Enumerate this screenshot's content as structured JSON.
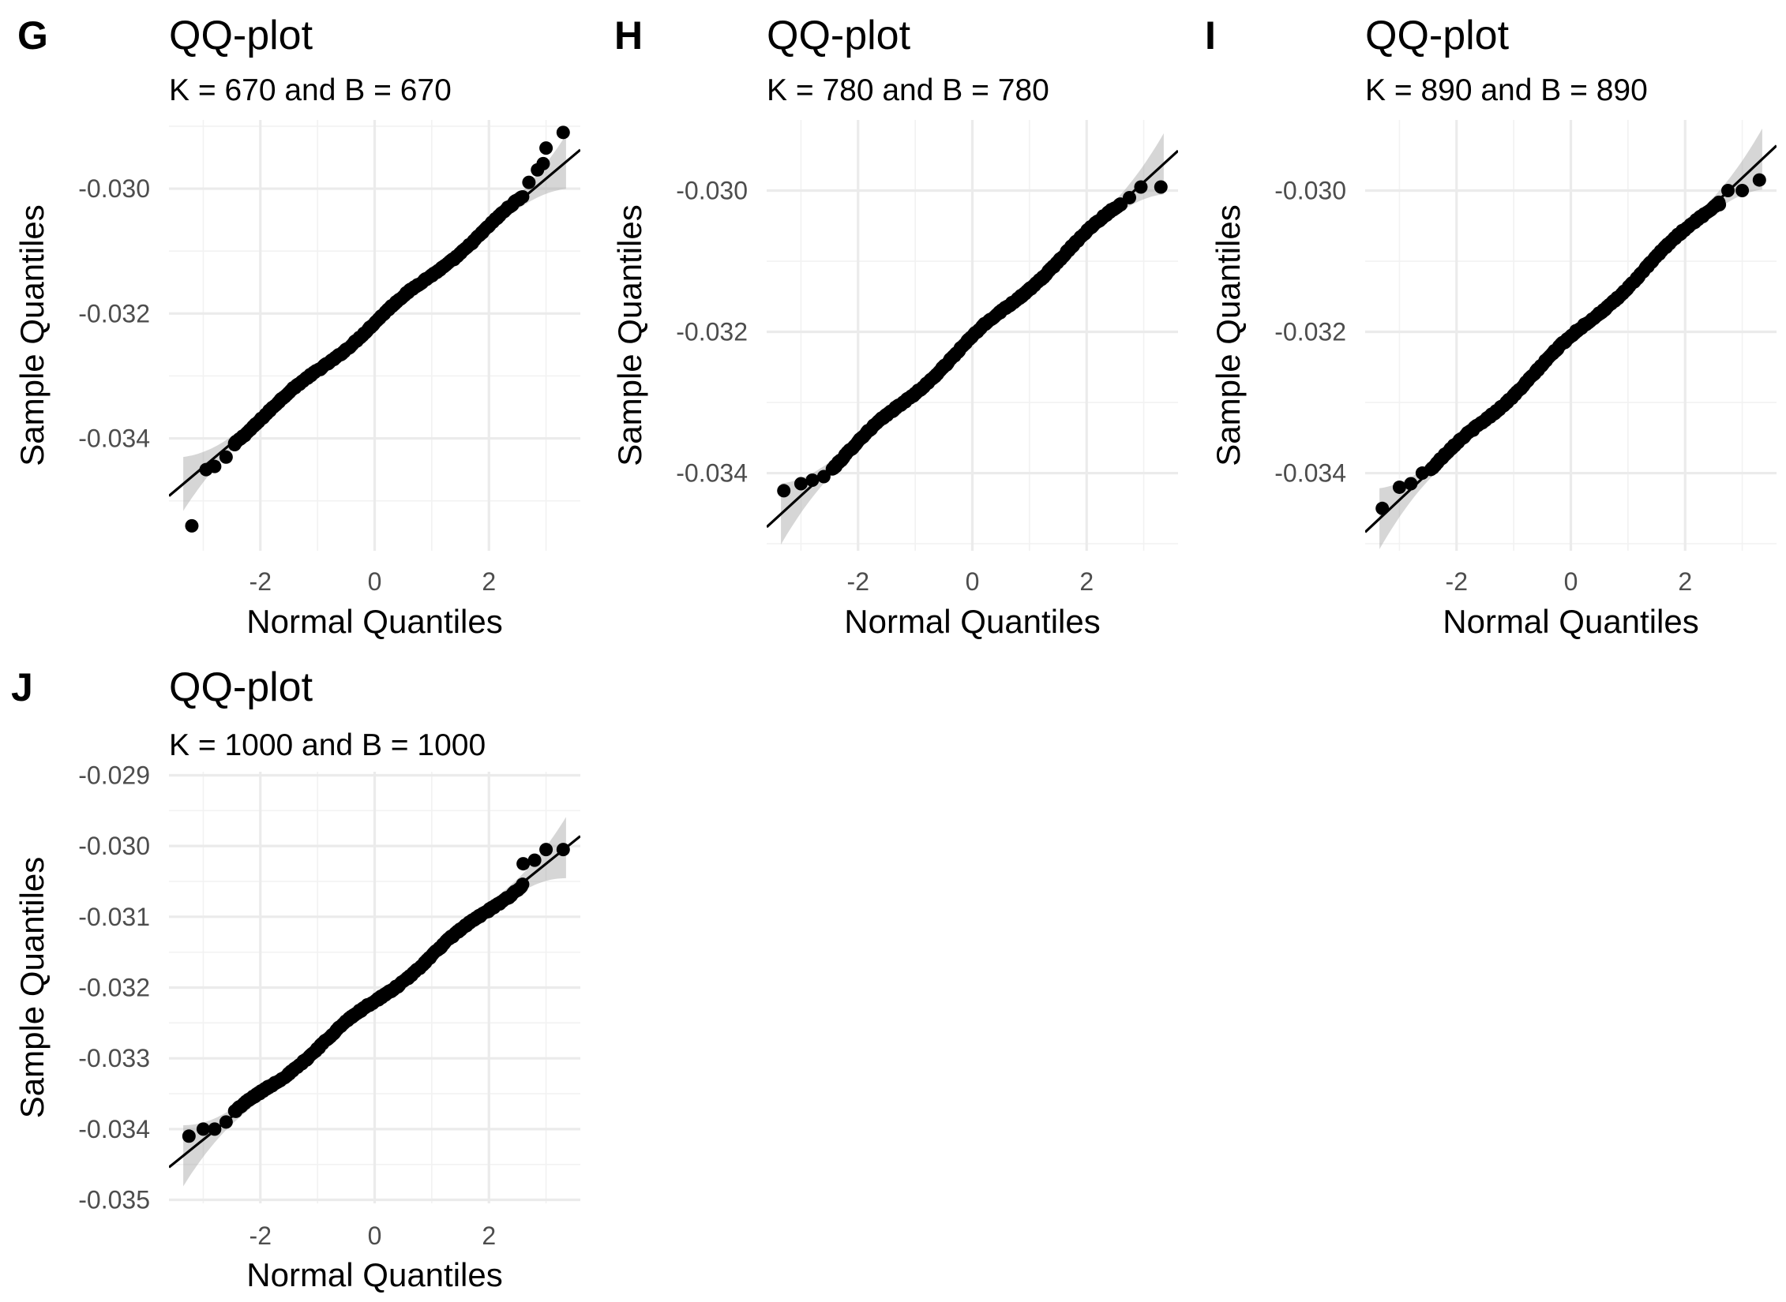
{
  "chart_data": [
    {
      "type": "scatter",
      "panel_label": "G",
      "title": "QQ-plot",
      "subtitle": "K = 670 and B = 670",
      "xlabel": "Normal Quantiles",
      "ylabel": "Sample Quantiles",
      "xlim": [
        -3.6,
        3.6
      ],
      "ylim": [
        -0.0358,
        -0.0289
      ],
      "x_ticks": [
        -2,
        0,
        2
      ],
      "x_tick_labels": [
        "-2",
        "0",
        "2"
      ],
      "y_ticks": [
        -0.034,
        -0.032,
        -0.03
      ],
      "y_tick_labels": [
        "-0.034",
        "-0.032",
        "-0.030"
      ],
      "grid": true,
      "reference_line": {
        "intercept": -0.03215,
        "slope": 0.00077
      },
      "confidence_band": true,
      "outlier_points": [
        {
          "x": -3.2,
          "y": -0.0354
        },
        {
          "x": -2.95,
          "y": -0.0345
        },
        {
          "x": -2.8,
          "y": -0.03445
        },
        {
          "x": -2.6,
          "y": -0.0343
        },
        {
          "x": -2.45,
          "y": -0.0341
        },
        {
          "x": 2.7,
          "y": -0.0299
        },
        {
          "x": 2.85,
          "y": -0.0297
        },
        {
          "x": 2.95,
          "y": -0.0296
        },
        {
          "x": 3.0,
          "y": -0.02935
        },
        {
          "x": 3.3,
          "y": -0.0291
        }
      ]
    },
    {
      "type": "scatter",
      "panel_label": "H",
      "title": "QQ-plot",
      "subtitle": "K = 780 and B = 780",
      "xlabel": "Normal Quantiles",
      "ylabel": "Sample Quantiles",
      "xlim": [
        -3.6,
        3.6
      ],
      "ylim": [
        -0.0351,
        -0.029
      ],
      "x_ticks": [
        -2,
        0,
        2
      ],
      "x_tick_labels": [
        "-2",
        "0",
        "2"
      ],
      "y_ticks": [
        -0.034,
        -0.032,
        -0.03
      ],
      "y_tick_labels": [
        "-0.034",
        "-0.032",
        "-0.030"
      ],
      "grid": true,
      "reference_line": {
        "intercept": -0.0321,
        "slope": 0.00074
      },
      "confidence_band": true,
      "outlier_points": [
        {
          "x": -3.3,
          "y": -0.03425
        },
        {
          "x": -3.0,
          "y": -0.03415
        },
        {
          "x": -2.8,
          "y": -0.0341
        },
        {
          "x": -2.6,
          "y": -0.03405
        },
        {
          "x": 2.6,
          "y": -0.0302
        },
        {
          "x": 2.75,
          "y": -0.0301
        },
        {
          "x": 2.95,
          "y": -0.02995
        },
        {
          "x": 3.3,
          "y": -0.02995
        }
      ]
    },
    {
      "type": "scatter",
      "panel_label": "I",
      "title": "QQ-plot",
      "subtitle": "K = 890 and B = 890",
      "xlabel": "Normal Quantiles",
      "ylabel": "Sample Quantiles",
      "xlim": [
        -3.6,
        3.6
      ],
      "ylim": [
        -0.0351,
        -0.029
      ],
      "x_ticks": [
        -2,
        0,
        2
      ],
      "x_tick_labels": [
        "-2",
        "0",
        "2"
      ],
      "y_ticks": [
        -0.034,
        -0.032,
        -0.03
      ],
      "y_tick_labels": [
        "-0.034",
        "-0.032",
        "-0.030"
      ],
      "grid": true,
      "reference_line": {
        "intercept": -0.0321,
        "slope": 0.00076
      },
      "confidence_band": true,
      "outlier_points": [
        {
          "x": -3.3,
          "y": -0.0345
        },
        {
          "x": -3.0,
          "y": -0.0342
        },
        {
          "x": -2.8,
          "y": -0.03415
        },
        {
          "x": -2.6,
          "y": -0.034
        },
        {
          "x": 2.6,
          "y": -0.0302
        },
        {
          "x": 2.75,
          "y": -0.03
        },
        {
          "x": 3.0,
          "y": -0.03
        },
        {
          "x": 3.3,
          "y": -0.02985
        }
      ]
    },
    {
      "type": "scatter",
      "panel_label": "J",
      "title": "QQ-plot",
      "subtitle": "K = 1000 and B = 1000",
      "xlabel": "Normal Quantiles",
      "ylabel": "Sample Quantiles",
      "xlim": [
        -3.6,
        3.6
      ],
      "ylim": [
        -0.03505,
        -0.02895
      ],
      "x_ticks": [
        -2,
        0,
        2
      ],
      "x_tick_labels": [
        "-2",
        "0",
        "2"
      ],
      "y_ticks": [
        -0.035,
        -0.034,
        -0.033,
        -0.032,
        -0.031,
        -0.03,
        -0.029
      ],
      "y_tick_labels": [
        "-0.035",
        "-0.034",
        "-0.033",
        "-0.032",
        "-0.031",
        "-0.030",
        "-0.029"
      ],
      "grid": true,
      "reference_line": {
        "intercept": -0.0322,
        "slope": 0.00065
      },
      "confidence_band": true,
      "outlier_points": [
        {
          "x": -3.25,
          "y": -0.0341
        },
        {
          "x": -3.0,
          "y": -0.034
        },
        {
          "x": -2.8,
          "y": -0.034
        },
        {
          "x": -2.6,
          "y": -0.0339
        },
        {
          "x": 2.6,
          "y": -0.03025
        },
        {
          "x": 2.8,
          "y": -0.0302
        },
        {
          "x": 3.0,
          "y": -0.03005
        },
        {
          "x": 3.3,
          "y": -0.03005
        }
      ]
    }
  ]
}
